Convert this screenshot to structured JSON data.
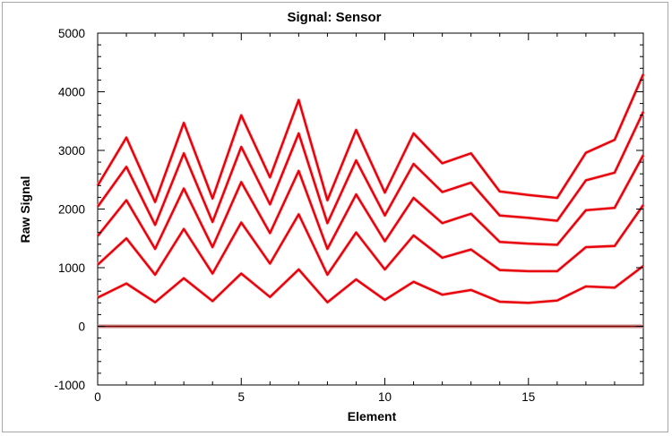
{
  "chart_data": {
    "type": "line",
    "title": "Signal: Sensor",
    "xlabel": "Element",
    "ylabel": "Raw Signal",
    "xlim": [
      0,
      19
    ],
    "ylim": [
      -1000,
      5000
    ],
    "x_ticks": [
      "0",
      "5",
      "10",
      "15"
    ],
    "y_ticks": [
      "-1000",
      "0",
      "1000",
      "2000",
      "3000",
      "4000",
      "5000"
    ],
    "x_tick_values": [
      0,
      5,
      10,
      15
    ],
    "y_tick_values": [
      -1000,
      0,
      1000,
      2000,
      3000,
      4000,
      5000
    ],
    "grid": false,
    "legend": "none",
    "line_color": "#e8000b",
    "zero_line_color": "#7a0000",
    "x": [
      0,
      1,
      2,
      3,
      4,
      5,
      6,
      7,
      8,
      9,
      10,
      11,
      12,
      13,
      14,
      15,
      16,
      17,
      18,
      19
    ],
    "series": [
      {
        "values": [
          0,
          0,
          0,
          0,
          0,
          0,
          0,
          0,
          0,
          0,
          0,
          0,
          0,
          0,
          0,
          0,
          0,
          0,
          0,
          0
        ]
      },
      {
        "values": [
          490,
          730,
          410,
          820,
          430,
          900,
          500,
          970,
          410,
          800,
          450,
          760,
          540,
          620,
          420,
          400,
          440,
          680,
          660,
          1030
        ]
      },
      {
        "values": [
          1050,
          1500,
          880,
          1660,
          900,
          1770,
          1070,
          1910,
          880,
          1600,
          970,
          1550,
          1170,
          1310,
          960,
          940,
          940,
          1350,
          1370,
          2070
        ]
      },
      {
        "values": [
          1540,
          2150,
          1320,
          2350,
          1350,
          2460,
          1590,
          2650,
          1320,
          2250,
          1450,
          2190,
          1760,
          1920,
          1440,
          1410,
          1390,
          1980,
          2020,
          2920
        ]
      },
      {
        "values": [
          2040,
          2720,
          1730,
          2950,
          1780,
          3060,
          2080,
          3290,
          1760,
          2830,
          1890,
          2770,
          2290,
          2450,
          1890,
          1850,
          1800,
          2490,
          2620,
          3660
        ]
      },
      {
        "values": [
          2400,
          3220,
          2120,
          3470,
          2180,
          3600,
          2540,
          3860,
          2150,
          3350,
          2280,
          3290,
          2780,
          2950,
          2300,
          2240,
          2190,
          2960,
          3180,
          4300
        ]
      }
    ]
  }
}
